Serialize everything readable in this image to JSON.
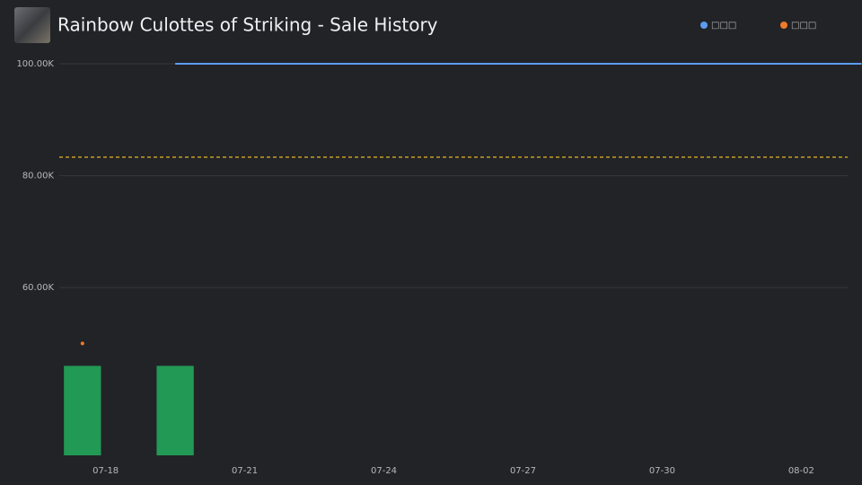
{
  "chart_data": {
    "type": "combo",
    "title": "Rainbow Culottes of Striking - Sale History",
    "xlim": [
      17,
      34
    ],
    "xticks": [
      {
        "value": 18,
        "label": "07-18"
      },
      {
        "value": 21,
        "label": "07-21"
      },
      {
        "value": 24,
        "label": "07-24"
      },
      {
        "value": 27,
        "label": "07-27"
      },
      {
        "value": 30,
        "label": "07-30"
      },
      {
        "value": 33,
        "label": "08-02"
      }
    ],
    "ylim": [
      30000,
      100000
    ],
    "yticks": [
      {
        "value": 60000,
        "label": "60.00K"
      },
      {
        "value": 80000,
        "label": "80.00K"
      },
      {
        "value": 100000,
        "label": "100.00K"
      }
    ],
    "grid": true,
    "series": [
      {
        "name": "□□□",
        "type": "line",
        "color": "#5b9bf0",
        "x": [
          19.5,
          34.3
        ],
        "values": [
          100000,
          100000
        ]
      },
      {
        "name": "□□□",
        "type": "scatter",
        "color": "#f07a2a",
        "x": [
          17.5
        ],
        "values": [
          50000
        ]
      },
      {
        "type": "bar",
        "color": "#229954",
        "x": [
          17.5,
          19.5
        ],
        "values": [
          46000,
          46000
        ]
      }
    ],
    "reference_line": {
      "value": 83300,
      "color": "#e6b422"
    }
  }
}
